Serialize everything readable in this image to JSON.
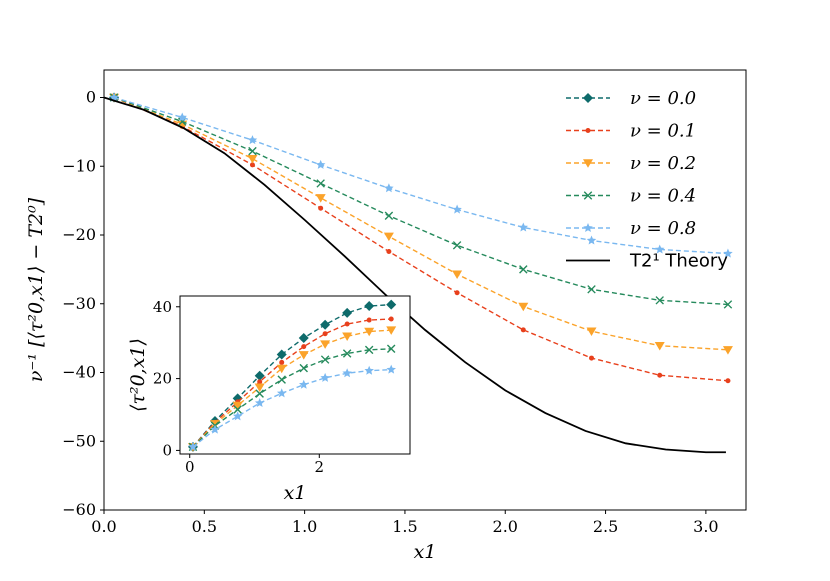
{
  "chart_data": [
    {
      "type": "line",
      "xlabel": "x1",
      "ylabel": "ν⁻¹ [⟨τ²0,x1⟩ − T2⁰]",
      "xlim": [
        0.0,
        3.2
      ],
      "ylim": [
        -60,
        4
      ],
      "xticks": [
        "0.0",
        "0.5",
        "1.0",
        "1.5",
        "2.0",
        "2.5",
        "3.0"
      ],
      "yticks": [
        "0",
        "−10",
        "−20",
        "−30",
        "−40",
        "−50",
        "−60"
      ],
      "legend_position": "top-right",
      "series": [
        {
          "name": "ν = 0.0",
          "color": "#0e6b6b",
          "marker": "diamond",
          "dashed": true,
          "x": [
            0.05
          ],
          "y": [
            0.0
          ]
        },
        {
          "name": "ν = 0.1",
          "color": "#e8401c",
          "marker": "dot",
          "dashed": true,
          "x": [
            0.05,
            0.39,
            0.74,
            1.08,
            1.42,
            1.76,
            2.09,
            2.43,
            2.77,
            3.11
          ],
          "y": [
            0.0,
            -4.2,
            -9.8,
            -16.1,
            -22.4,
            -28.4,
            -33.8,
            -37.9,
            -40.4,
            -41.2
          ]
        },
        {
          "name": "ν = 0.2",
          "color": "#fba32a",
          "marker": "triangle-down",
          "dashed": true,
          "x": [
            0.05,
            0.39,
            0.74,
            1.08,
            1.42,
            1.76,
            2.09,
            2.43,
            2.77,
            3.11
          ],
          "y": [
            0.0,
            -3.9,
            -8.9,
            -14.6,
            -20.2,
            -25.7,
            -30.4,
            -34.0,
            -36.1,
            -36.7
          ]
        },
        {
          "name": "ν = 0.4",
          "color": "#258a5c",
          "marker": "x",
          "dashed": true,
          "x": [
            0.05,
            0.39,
            0.74,
            1.08,
            1.42,
            1.76,
            2.09,
            2.43,
            2.77,
            3.11
          ],
          "y": [
            0.0,
            -3.5,
            -7.8,
            -12.5,
            -17.2,
            -21.5,
            -25.0,
            -27.9,
            -29.5,
            -30.1
          ]
        },
        {
          "name": "ν = 0.8",
          "color": "#7ab8f0",
          "marker": "star",
          "dashed": true,
          "x": [
            0.05,
            0.39,
            0.74,
            1.08,
            1.42,
            1.76,
            2.09,
            2.43,
            2.77,
            3.11
          ],
          "y": [
            0.0,
            -2.9,
            -6.2,
            -9.8,
            -13.2,
            -16.3,
            -18.9,
            -20.8,
            -22.1,
            -22.7
          ]
        },
        {
          "name": "T2¹ Theory",
          "color": "#000000",
          "marker": "none",
          "dashed": false,
          "x": [
            0.0,
            0.2,
            0.4,
            0.6,
            0.8,
            1.0,
            1.2,
            1.4,
            1.6,
            1.8,
            2.0,
            2.2,
            2.4,
            2.6,
            2.8,
            3.0,
            3.1
          ],
          "y": [
            0.0,
            -1.8,
            -4.5,
            -8.1,
            -12.7,
            -17.8,
            -23.1,
            -28.6,
            -33.8,
            -38.5,
            -42.6,
            -45.9,
            -48.5,
            -50.3,
            -51.2,
            -51.6,
            -51.6
          ]
        }
      ]
    },
    {
      "type": "line",
      "role": "inset",
      "xlabel": "x1",
      "ylabel": "⟨τ²0,x1⟩",
      "xlim": [
        -0.15,
        3.4
      ],
      "ylim": [
        -1,
        43
      ],
      "xticks": [
        "0",
        "2"
      ],
      "yticks": [
        "0",
        "20",
        "40"
      ],
      "series": [
        {
          "name": "ν = 0.0",
          "color": "#0e6b6b",
          "marker": "diamond",
          "x": [
            0.05,
            0.39,
            0.74,
            1.08,
            1.42,
            1.76,
            2.09,
            2.43,
            2.77,
            3.11
          ],
          "y": [
            1.0,
            8.2,
            14.5,
            20.8,
            26.7,
            31.3,
            35.0,
            38.3,
            40.2,
            40.6
          ]
        },
        {
          "name": "ν = 0.1",
          "color": "#e8401c",
          "marker": "dot",
          "x": [
            0.05,
            0.39,
            0.74,
            1.08,
            1.42,
            1.76,
            2.09,
            2.43,
            2.77,
            3.11
          ],
          "y": [
            1.0,
            7.8,
            13.5,
            19.1,
            24.5,
            28.9,
            32.5,
            35.2,
            36.3,
            36.6
          ]
        },
        {
          "name": "ν = 0.2",
          "color": "#fba32a",
          "marker": "triangle-down",
          "x": [
            0.05,
            0.39,
            0.74,
            1.08,
            1.42,
            1.76,
            2.09,
            2.43,
            2.77,
            3.11
          ],
          "y": [
            1.0,
            7.4,
            12.5,
            17.6,
            22.8,
            26.6,
            29.6,
            31.8,
            33.1,
            33.5
          ]
        },
        {
          "name": "ν = 0.4",
          "color": "#258a5c",
          "marker": "x",
          "x": [
            0.05,
            0.39,
            0.74,
            1.08,
            1.42,
            1.76,
            2.09,
            2.43,
            2.77,
            3.11
          ],
          "y": [
            1.0,
            6.9,
            11.4,
            15.8,
            19.7,
            22.9,
            25.3,
            27.0,
            28.0,
            28.3
          ]
        },
        {
          "name": "ν = 0.8",
          "color": "#7ab8f0",
          "marker": "star",
          "x": [
            0.05,
            0.39,
            0.74,
            1.08,
            1.42,
            1.76,
            2.09,
            2.43,
            2.77,
            3.11
          ],
          "y": [
            1.0,
            5.8,
            9.5,
            13.2,
            15.9,
            18.3,
            20.2,
            21.5,
            22.2,
            22.5
          ]
        }
      ]
    }
  ]
}
